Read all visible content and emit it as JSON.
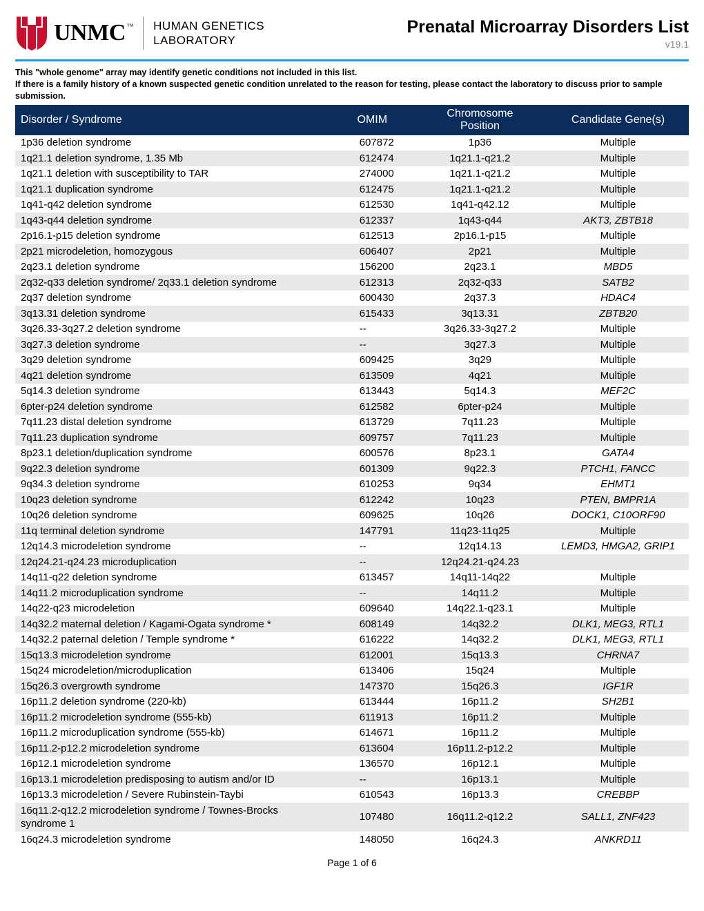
{
  "header": {
    "org_name": "UNMC",
    "dept_line1": "HUMAN GENETICS",
    "dept_line2": "LABORATORY",
    "doc_title": "Prenatal Microarray Disorders List",
    "version": "v19.1"
  },
  "intro": {
    "line1": "This \"whole genome\" array may identify genetic conditions not included in this list.",
    "line2": "If there is a family history of a known suspected genetic condition unrelated to the reason for testing, please contact the laboratory to discuss prior to sample submission."
  },
  "table": {
    "columns": [
      "Disorder / Syndrome",
      "OMIM",
      "Chromosome Position",
      "Candidate Gene(s)"
    ],
    "rows": [
      {
        "disorder": "1p36 deletion syndrome",
        "omim": "607872",
        "chrom": "1p36",
        "gene": "Multiple"
      },
      {
        "disorder": "1q21.1 deletion syndrome, 1.35 Mb",
        "omim": "612474",
        "chrom": "1q21.1-q21.2",
        "gene": "Multiple"
      },
      {
        "disorder": "1q21.1 deletion with susceptibility to TAR",
        "omim": "274000",
        "chrom": "1q21.1-q21.2",
        "gene": "Multiple"
      },
      {
        "disorder": "1q21.1 duplication syndrome",
        "omim": "612475",
        "chrom": "1q21.1-q21.2",
        "gene": "Multiple"
      },
      {
        "disorder": "1q41-q42 deletion syndrome",
        "omim": "612530",
        "chrom": "1q41-q42.12",
        "gene": "Multiple"
      },
      {
        "disorder": "1q43-q44 deletion syndrome",
        "omim": "612337",
        "chrom": "1q43-q44",
        "gene": "AKT3, ZBTB18"
      },
      {
        "disorder": "2p16.1-p15 deletion syndrome",
        "omim": "612513",
        "chrom": "2p16.1-p15",
        "gene": "Multiple"
      },
      {
        "disorder": "2p21 microdeletion, homozygous",
        "omim": "606407",
        "chrom": "2p21",
        "gene": "Multiple"
      },
      {
        "disorder": "2q23.1 deletion syndrome",
        "omim": "156200",
        "chrom": "2q23.1",
        "gene": "MBD5"
      },
      {
        "disorder": "2q32-q33 deletion syndrome/ 2q33.1 deletion syndrome",
        "omim": "612313",
        "chrom": "2q32-q33",
        "gene": "SATB2"
      },
      {
        "disorder": "2q37 deletion syndrome",
        "omim": "600430",
        "chrom": "2q37.3",
        "gene": "HDAC4"
      },
      {
        "disorder": "3q13.31 deletion syndrome",
        "omim": "615433",
        "chrom": "3q13.31",
        "gene": "ZBTB20"
      },
      {
        "disorder": "3q26.33-3q27.2 deletion syndrome",
        "omim": "--",
        "chrom": "3q26.33-3q27.2",
        "gene": "Multiple"
      },
      {
        "disorder": "3q27.3 deletion syndrome",
        "omim": "--",
        "chrom": "3q27.3",
        "gene": "Multiple"
      },
      {
        "disorder": "3q29 deletion syndrome",
        "omim": "609425",
        "chrom": "3q29",
        "gene": "Multiple"
      },
      {
        "disorder": "4q21 deletion syndrome",
        "omim": "613509",
        "chrom": "4q21",
        "gene": "Multiple"
      },
      {
        "disorder": "5q14.3 deletion syndrome",
        "omim": "613443",
        "chrom": "5q14.3",
        "gene": "MEF2C"
      },
      {
        "disorder": "6pter-p24 deletion syndrome",
        "omim": "612582",
        "chrom": "6pter-p24",
        "gene": "Multiple"
      },
      {
        "disorder": "7q11.23 distal deletion syndrome",
        "omim": "613729",
        "chrom": "7q11.23",
        "gene": "Multiple"
      },
      {
        "disorder": "7q11.23 duplication syndrome",
        "omim": "609757",
        "chrom": "7q11.23",
        "gene": "Multiple"
      },
      {
        "disorder": "8p23.1 deletion/duplication syndrome",
        "omim": "600576",
        "chrom": "8p23.1",
        "gene": "GATA4"
      },
      {
        "disorder": "9q22.3 deletion syndrome",
        "omim": "601309",
        "chrom": "9q22.3",
        "gene": "PTCH1, FANCC"
      },
      {
        "disorder": "9q34.3 deletion syndrome",
        "omim": "610253",
        "chrom": "9q34",
        "gene": "EHMT1"
      },
      {
        "disorder": "10q23 deletion syndrome",
        "omim": "612242",
        "chrom": "10q23",
        "gene": "PTEN, BMPR1A"
      },
      {
        "disorder": "10q26 deletion syndrome",
        "omim": "609625",
        "chrom": "10q26",
        "gene": "DOCK1, C10ORF90"
      },
      {
        "disorder": "11q terminal deletion syndrome",
        "omim": "147791",
        "chrom": "11q23-11q25",
        "gene": "Multiple"
      },
      {
        "disorder": "12q14.3 microdeletion syndrome",
        "omim": "--",
        "chrom": "12q14.13",
        "gene": "LEMD3, HMGA2, GRIP1"
      },
      {
        "disorder": "12q24.21-q24.23 microduplication",
        "omim": "--",
        "chrom": "12q24.21-q24.23",
        "gene": ""
      },
      {
        "disorder": "14q11-q22 deletion syndrome",
        "omim": "613457",
        "chrom": "14q11-14q22",
        "gene": "Multiple"
      },
      {
        "disorder": "14q11.2 microduplication syndrome",
        "omim": "--",
        "chrom": "14q11.2",
        "gene": "Multiple"
      },
      {
        "disorder": "14q22-q23 microdeletion",
        "omim": "609640",
        "chrom": "14q22.1-q23.1",
        "gene": "Multiple"
      },
      {
        "disorder": "14q32.2 maternal deletion / Kagami-Ogata syndrome *",
        "omim": "608149",
        "chrom": "14q32.2",
        "gene": "DLK1, MEG3, RTL1"
      },
      {
        "disorder": "14q32.2 paternal deletion / Temple syndrome *",
        "omim": "616222",
        "chrom": "14q32.2",
        "gene": "DLK1, MEG3, RTL1"
      },
      {
        "disorder": "15q13.3 microdeletion syndrome",
        "omim": "612001",
        "chrom": "15q13.3",
        "gene": "CHRNA7"
      },
      {
        "disorder": "15q24 microdeletion/microduplication",
        "omim": "613406",
        "chrom": "15q24",
        "gene": "Multiple"
      },
      {
        "disorder": "15q26.3 overgrowth syndrome",
        "omim": "147370",
        "chrom": "15q26.3",
        "gene": "IGF1R"
      },
      {
        "disorder": "16p11.2 deletion syndrome (220-kb)",
        "omim": "613444",
        "chrom": "16p11.2",
        "gene": "SH2B1"
      },
      {
        "disorder": "16p11.2 microdeletion syndrome (555-kb)",
        "omim": "611913",
        "chrom": "16p11.2",
        "gene": "Multiple"
      },
      {
        "disorder": "16p11.2 microduplication syndrome (555-kb)",
        "omim": "614671",
        "chrom": "16p11.2",
        "gene": "Multiple"
      },
      {
        "disorder": "16p11.2-p12.2 microdeletion syndrome",
        "omim": "613604",
        "chrom": "16p11.2-p12.2",
        "gene": "Multiple"
      },
      {
        "disorder": "16p12.1 microdeletion syndrome",
        "omim": "136570",
        "chrom": "16p12.1",
        "gene": "Multiple"
      },
      {
        "disorder": "16p13.1 microdeletion predisposing to autism and/or ID",
        "omim": "--",
        "chrom": "16p13.1",
        "gene": "Multiple"
      },
      {
        "disorder": "16p13.3 microdeletion / Severe Rubinstein-Taybi",
        "omim": "610543",
        "chrom": "16p13.3",
        "gene": "CREBBP"
      },
      {
        "disorder": "16q11.2-q12.2 microdeletion syndrome / Townes-Brocks syndrome 1",
        "omim": "107480",
        "chrom": "16q11.2-q12.2",
        "gene": "SALL1, ZNF423"
      },
      {
        "disorder": "16q24.3 microdeletion syndrome",
        "omim": "148050",
        "chrom": "16q24.3",
        "gene": "ANKRD11"
      }
    ]
  },
  "footer": {
    "page_text": "Page 1 of 6"
  },
  "colors": {
    "header_rule": "#1b9dd9",
    "table_header_bg": "#0b2d5b",
    "row_alt_bg": "#e8e8e8",
    "logo_red": "#c8102e"
  }
}
